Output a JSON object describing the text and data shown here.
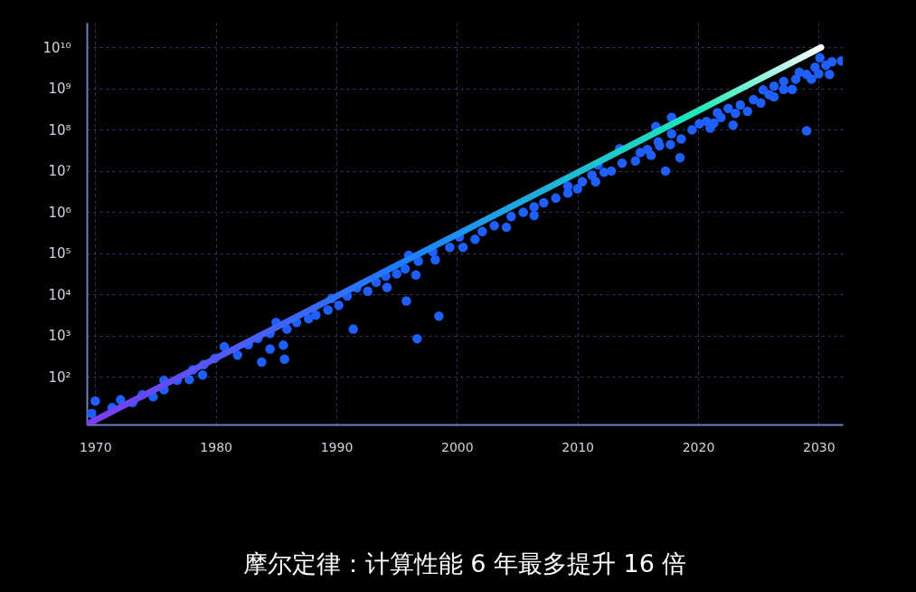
{
  "chart_data": {
    "type": "scatter",
    "title": "摩尔定律：计算性能 6 年最多提升 16 倍",
    "log": "y",
    "grid": true,
    "xlim": [
      1969.3,
      2032
    ],
    "xticks": [
      1970,
      1980,
      1990,
      2000,
      2010,
      2020,
      2030
    ],
    "ylim": [
      7,
      40000000000
    ],
    "yticks": [
      {
        "value": 100,
        "label": "10²"
      },
      {
        "value": 1000,
        "label": "10³"
      },
      {
        "value": 10000,
        "label": "10⁴"
      },
      {
        "value": 100000,
        "label": "10⁵"
      },
      {
        "value": 1000000,
        "label": "10⁶"
      },
      {
        "value": 10000000,
        "label": "10⁷"
      },
      {
        "value": 100000000,
        "label": "10⁸"
      },
      {
        "value": 1000000000,
        "label": "10⁹"
      },
      {
        "value": 10000000000,
        "label": "10¹⁰"
      }
    ],
    "series": [
      {
        "color": "#1f5fff",
        "marker": "circle",
        "x": [
          1969.7,
          1970.0,
          1971.4,
          1972.1,
          1973.1,
          1973.9,
          1974.8,
          1975.7,
          1975.7,
          1976.8,
          1977.8,
          1978.1,
          1978.9,
          1979.0,
          1979.9,
          1980.7,
          1981.8,
          1982.7,
          1983.5,
          1983.8,
          1984.5,
          1984.5,
          1985.0,
          1985.6,
          1985.7,
          1985.9,
          1986.7,
          1987.7,
          1988.3,
          1989.3,
          1989.6,
          1990.2,
          1990.9,
          1991.4,
          1991.7,
          1992.6,
          1993.3,
          1994.1,
          1994.2,
          1995.0,
          1995.7,
          1995.8,
          1996.0,
          1996.6,
          1996.7,
          1996.8,
          1998.0,
          1998.2,
          1998.5,
          1999.4,
          2000.2,
          2000.5,
          2001.5,
          2002.1,
          2003.1,
          2004.1,
          2004.5,
          2005.5,
          2006.4,
          2006.4,
          2007.2,
          2008.2,
          2009.2,
          2009.2,
          2010.0,
          2010.4,
          2011.2,
          2011.5,
          2011.7,
          2012.2,
          2012.8,
          2013.5,
          2013.7,
          2014.8,
          2015.2,
          2015.8,
          2016.1,
          2016.5,
          2016.7,
          2016.8,
          2017.3,
          2017.7,
          2017.8,
          2017.8,
          2018.5,
          2018.6,
          2019.5,
          2020.1,
          2020.7,
          2021.0,
          2021.3,
          2021.6,
          2021.9,
          2022.5,
          2022.9,
          2023.1,
          2023.5,
          2024.1,
          2024.6,
          2025.2,
          2025.4,
          2025.9,
          2026.3,
          2026.3,
          2027.1,
          2027.1,
          2027.8,
          2028.1,
          2028.4,
          2029.0,
          2029.0,
          2029.4,
          2029.7,
          2030.0,
          2030.1,
          2030.6,
          2030.9,
          2031.1,
          2031.9
        ],
        "values": [
          13,
          26,
          18,
          28,
          24,
          37,
          33,
          49,
          83,
          83,
          87,
          150,
          112,
          200,
          280,
          540,
          340,
          610,
          870,
          230,
          480,
          1150,
          2100,
          590,
          270,
          1450,
          2100,
          2600,
          3200,
          4200,
          8000,
          5500,
          9200,
          1450,
          14500,
          12000,
          20000,
          28000,
          15000,
          32000,
          42000,
          7000,
          90000,
          30000,
          850,
          65000,
          110000,
          70000,
          3000,
          140000,
          250000,
          140000,
          220000,
          340000,
          470000,
          430000,
          780000,
          1000000,
          1350000,
          830000,
          1700000,
          2200000,
          2900000,
          4300000,
          3700000,
          5500000,
          7900000,
          5500000,
          14000000,
          9300000,
          10000000,
          35000000,
          15500000,
          17500000,
          28000000,
          33000000,
          24000000,
          120000000,
          51000000,
          41000000,
          10000000,
          44000000,
          200000000,
          80000000,
          21000000,
          60000000,
          100000000,
          140000000,
          160000000,
          110000000,
          145000000,
          260000000,
          200000000,
          330000000,
          130000000,
          250000000,
          400000000,
          280000000,
          540000000,
          450000000,
          930000000,
          720000000,
          630000000,
          1150000000,
          1500000000,
          960000000,
          960000000,
          1700000000,
          2500000000,
          95000000,
          2200000000,
          1700000000,
          3300000000,
          2300000000,
          5600000000,
          3700000000,
          2200000000,
          4500000000,
          4700000000
        ]
      },
      {
        "type": "line",
        "colors": [
          "#7b3cf0",
          "#1e7bff",
          "#1de9b6",
          "#ffffff"
        ],
        "x": [
          1969.3,
          1995,
          2020,
          2030.2
        ],
        "values": [
          7,
          51000,
          290000000,
          10000000000
        ]
      }
    ]
  }
}
